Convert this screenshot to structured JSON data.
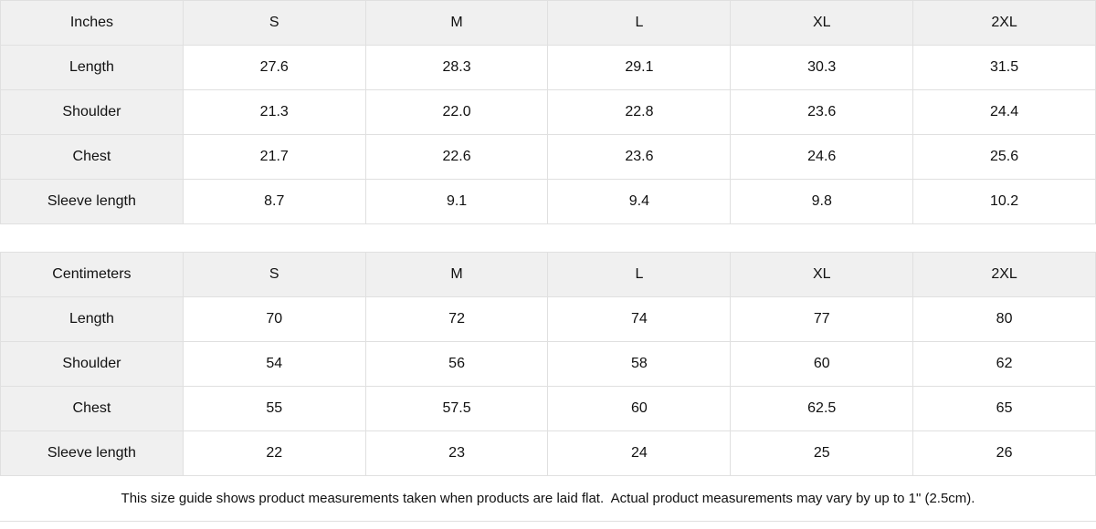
{
  "colors": {
    "shade_bg": "#f0f0f0",
    "border": "#e0e0e0",
    "text": "#111111"
  },
  "tables": [
    {
      "unit_label": "Inches",
      "sizes": [
        "S",
        "M",
        "L",
        "XL",
        "2XL"
      ],
      "rows": [
        {
          "label": "Length",
          "values": [
            "27.6",
            "28.3",
            "29.1",
            "30.3",
            "31.5"
          ]
        },
        {
          "label": "Shoulder",
          "values": [
            "21.3",
            "22.0",
            "22.8",
            "23.6",
            "24.4"
          ]
        },
        {
          "label": "Chest",
          "values": [
            "21.7",
            "22.6",
            "23.6",
            "24.6",
            "25.6"
          ]
        },
        {
          "label": "Sleeve length",
          "values": [
            "8.7",
            "9.1",
            "9.4",
            "9.8",
            "10.2"
          ]
        }
      ]
    },
    {
      "unit_label": "Centimeters",
      "sizes": [
        "S",
        "M",
        "L",
        "XL",
        "2XL"
      ],
      "rows": [
        {
          "label": "Length",
          "values": [
            "70",
            "72",
            "74",
            "77",
            "80"
          ]
        },
        {
          "label": "Shoulder",
          "values": [
            "54",
            "56",
            "58",
            "60",
            "62"
          ]
        },
        {
          "label": "Chest",
          "values": [
            "55",
            "57.5",
            "60",
            "62.5",
            "65"
          ]
        },
        {
          "label": "Sleeve length",
          "values": [
            "22",
            "23",
            "24",
            "25",
            "26"
          ]
        }
      ]
    }
  ],
  "footer": {
    "note": "This size guide shows product measurements taken when products are laid flat.  Actual product measurements may vary by up to 1\" (2.5cm)."
  }
}
